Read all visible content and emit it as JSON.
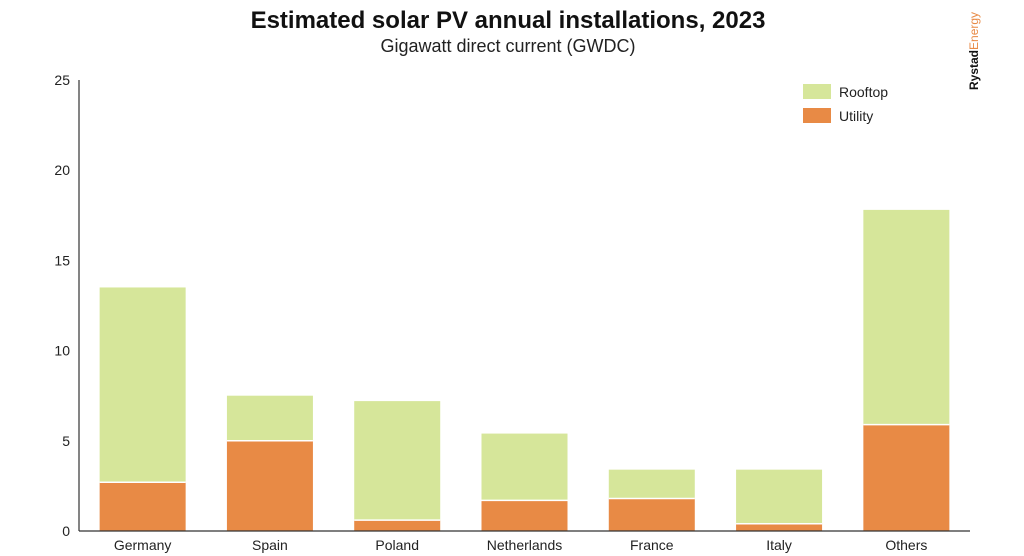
{
  "chart_data": {
    "type": "bar",
    "stacked": true,
    "title": "Estimated solar PV annual installations, 2023",
    "subtitle": "Gigawatt direct current (GWDC)",
    "categories": [
      "Germany",
      "Spain",
      "Poland",
      "Netherlands",
      "France",
      "Italy",
      "Others"
    ],
    "series": [
      {
        "name": "Utility",
        "values": [
          2.7,
          5.0,
          0.6,
          1.7,
          1.8,
          0.4,
          5.9
        ]
      },
      {
        "name": "Rooftop",
        "values": [
          10.8,
          2.5,
          6.6,
          3.7,
          1.6,
          3.0,
          11.9
        ]
      }
    ],
    "ylim": [
      0,
      25
    ],
    "yticks": [
      0,
      5,
      10,
      15,
      20,
      25
    ],
    "grid": false,
    "legend_position": "top-right",
    "legend": [
      {
        "name": "Rooftop",
        "color": "#D6E69A"
      },
      {
        "name": "Utility",
        "color": "#E88A45"
      }
    ],
    "colors": {
      "Rooftop": "#D6E69A",
      "Utility": "#E88A45"
    },
    "source": {
      "brand_part1": "Rystad",
      "brand_part2": "Energy",
      "color1": "#111111",
      "color2": "#E88A45"
    }
  }
}
